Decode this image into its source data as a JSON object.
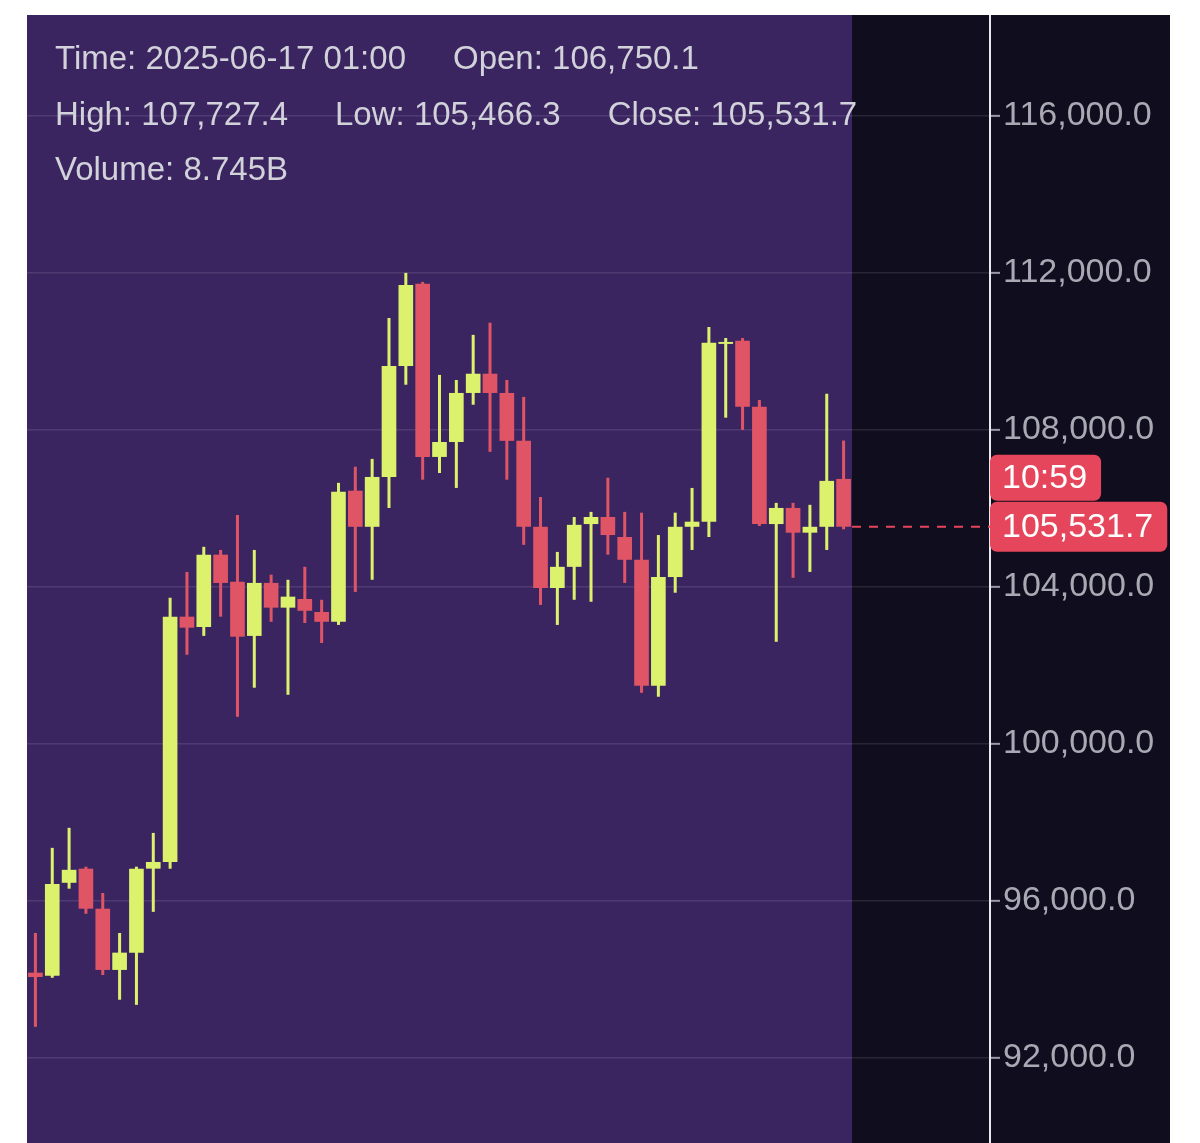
{
  "chart_data": {
    "type": "candlestick",
    "categories": [
      null,
      null,
      null,
      null,
      null,
      null,
      null,
      null,
      null,
      null,
      null,
      null,
      null,
      null,
      null,
      null,
      null,
      null,
      null,
      null,
      null,
      null,
      null,
      null,
      null,
      null,
      null,
      null,
      null,
      null,
      null,
      null,
      null,
      null,
      null,
      null,
      null,
      null,
      null,
      null,
      null,
      null,
      null,
      null,
      null,
      null,
      null,
      null,
      null
    ],
    "ohlc": [
      [
        94170,
        95180,
        92790,
        94060
      ],
      [
        94090,
        97350,
        94040,
        96430
      ],
      [
        96460,
        97860,
        96310,
        96790
      ],
      [
        96820,
        96870,
        95670,
        95800
      ],
      [
        95800,
        96200,
        94110,
        94240
      ],
      [
        94240,
        95180,
        93480,
        94680
      ],
      [
        94680,
        96870,
        93350,
        96820
      ],
      [
        96820,
        97730,
        95720,
        96990
      ],
      [
        96990,
        103720,
        96820,
        103240
      ],
      [
        103240,
        104380,
        102270,
        102960
      ],
      [
        102980,
        105020,
        102750,
        104820
      ],
      [
        104820,
        104940,
        103240,
        104100
      ],
      [
        104130,
        105830,
        100690,
        102730
      ],
      [
        102750,
        104940,
        101430,
        104100
      ],
      [
        104100,
        104310,
        103110,
        103470
      ],
      [
        103470,
        104180,
        101250,
        103750
      ],
      [
        103690,
        104510,
        103080,
        103390
      ],
      [
        103360,
        103670,
        102570,
        103110
      ],
      [
        103110,
        106650,
        103030,
        106420
      ],
      [
        106450,
        107060,
        103870,
        105530
      ],
      [
        105530,
        107260,
        104180,
        106800
      ],
      [
        106800,
        110850,
        106010,
        109630
      ],
      [
        109630,
        112000,
        109150,
        111690
      ],
      [
        111720,
        111770,
        106730,
        107310
      ],
      [
        107310,
        109400,
        106900,
        107690
      ],
      [
        107690,
        109270,
        106520,
        108940
      ],
      [
        108940,
        110420,
        108640,
        109430
      ],
      [
        109430,
        110730,
        107440,
        108940
      ],
      [
        108940,
        109270,
        106730,
        107720
      ],
      [
        107720,
        108840,
        105070,
        105530
      ],
      [
        105530,
        106290,
        103540,
        103970
      ],
      [
        103970,
        104890,
        103030,
        104510
      ],
      [
        104510,
        105780,
        103670,
        105580
      ],
      [
        105600,
        105910,
        103620,
        105780
      ],
      [
        105780,
        106780,
        104820,
        105320
      ],
      [
        105270,
        105910,
        104100,
        104690
      ],
      [
        104690,
        105890,
        101300,
        101480
      ],
      [
        101480,
        105320,
        101200,
        104250
      ],
      [
        104250,
        105890,
        103850,
        105530
      ],
      [
        105530,
        106520,
        104940,
        105660
      ],
      [
        105660,
        110620,
        105270,
        110220
      ],
      [
        110190,
        110340,
        108310,
        110240
      ],
      [
        110270,
        110340,
        108000,
        108590
      ],
      [
        108590,
        108760,
        105550,
        105600
      ],
      [
        105600,
        106140,
        102600,
        106010
      ],
      [
        106010,
        106140,
        104230,
        105380
      ],
      [
        105380,
        106090,
        104380,
        105530
      ],
      [
        105530,
        108920,
        104940,
        106700
      ],
      [
        106750.1,
        107727.4,
        105466.3,
        105531.7
      ]
    ],
    "colors": [
      "#e05566",
      "#dcf26c",
      "#dcf26c",
      "#e05566",
      "#e05566",
      "#dcf26c",
      "#dcf26c",
      "#dcf26c",
      "#dcf26c",
      "#e05566",
      "#dcf26c",
      "#e05566",
      "#e05566",
      "#dcf26c",
      "#e05566",
      "#dcf26c",
      "#e05566",
      "#e05566",
      "#dcf26c",
      "#e05566",
      "#dcf26c",
      "#dcf26c",
      "#dcf26c",
      "#e05566",
      "#dcf26c",
      "#dcf26c",
      "#dcf26c",
      "#e05566",
      "#e05566",
      "#e05566",
      "#e05566",
      "#dcf26c",
      "#dcf26c",
      "#dcf26c",
      "#e05566",
      "#e05566",
      "#e05566",
      "#dcf26c",
      "#dcf26c",
      "#dcf26c",
      "#dcf26c",
      "#dcf26c",
      "#e05566",
      "#e05566",
      "#dcf26c",
      "#e05566",
      "#dcf26c",
      "#dcf26c",
      "#e05566"
    ],
    "ylim": [
      89830,
      118570
    ],
    "yticks": [
      {
        "value": 92000,
        "label": "92,000.0"
      },
      {
        "value": 96000,
        "label": "96,000.0"
      },
      {
        "value": 100000,
        "label": "100,000.0"
      },
      {
        "value": 104000,
        "label": "104,000.0"
      },
      {
        "value": 108000,
        "label": "108,000.0"
      },
      {
        "value": 112000,
        "label": "112,000.0"
      },
      {
        "value": 116000,
        "label": "116,000.0"
      }
    ],
    "grid": "y",
    "tick_labels": "y",
    "ref_lines": [
      {
        "axis": "y",
        "value": 105531.7,
        "label": "105,531.7",
        "color": "#e6465b",
        "line_style": "dashed"
      }
    ],
    "annotations": [
      "Time: 2025-06-17 01:00",
      "Open: 106,750.1",
      "High: 107,727.4",
      "Low: 105,466.3",
      "Close: 105,531.7",
      "Volume: 8.745B",
      "10:59"
    ]
  }
}
